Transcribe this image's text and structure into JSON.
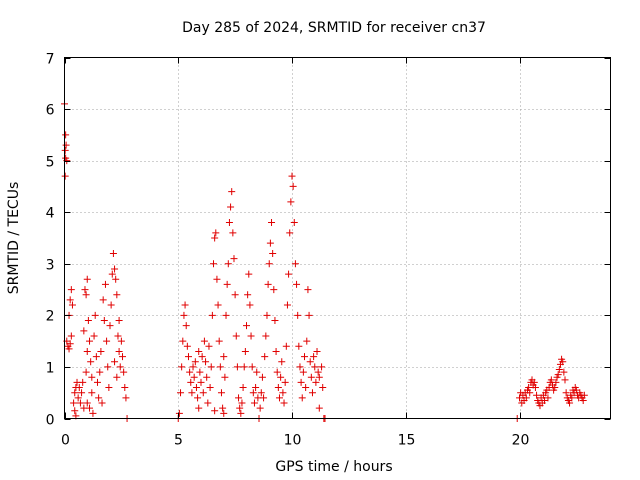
{
  "chart_data": {
    "type": "scatter",
    "title": "Day 285 of 2024, SRMTID for receiver cn37",
    "xlabel": "GPS time / hours",
    "ylabel": "SRMTID / TECUs",
    "xlim": [
      0,
      24
    ],
    "ylim": [
      0,
      7
    ],
    "xticks": [
      {
        "value": 0,
        "label": "0"
      },
      {
        "value": 5,
        "label": "5"
      },
      {
        "value": 10,
        "label": "10"
      },
      {
        "value": 15,
        "label": "15"
      },
      {
        "value": 20,
        "label": "20"
      }
    ],
    "yticks": [
      {
        "value": 0,
        "label": "0"
      },
      {
        "value": 1,
        "label": "1"
      },
      {
        "value": 2,
        "label": "2"
      },
      {
        "value": 3,
        "label": "3"
      },
      {
        "value": 4,
        "label": "4"
      },
      {
        "value": 5,
        "label": "5"
      },
      {
        "value": 6,
        "label": "6"
      },
      {
        "value": 7,
        "label": "7"
      }
    ],
    "grid": true,
    "marker": "+",
    "color": "#e00000",
    "series": [
      {
        "name": "SRMTID",
        "points": [
          [
            0.0,
            6.1
          ],
          [
            0.05,
            5.5
          ],
          [
            0.03,
            5.2
          ],
          [
            0.05,
            5.05
          ],
          [
            0.03,
            4.7
          ],
          [
            0.07,
            5.3
          ],
          [
            0.1,
            5.0
          ],
          [
            0.1,
            1.5
          ],
          [
            0.15,
            1.4
          ],
          [
            0.2,
            1.35
          ],
          [
            0.25,
            1.45
          ],
          [
            0.2,
            2.0
          ],
          [
            0.25,
            2.3
          ],
          [
            0.3,
            2.5
          ],
          [
            0.35,
            2.2
          ],
          [
            0.3,
            1.6
          ],
          [
            0.4,
            0.3
          ],
          [
            0.45,
            0.5
          ],
          [
            0.5,
            0.6
          ],
          [
            0.55,
            0.7
          ],
          [
            0.6,
            0.4
          ],
          [
            0.65,
            0.6
          ],
          [
            0.7,
            0.3
          ],
          [
            0.75,
            0.5
          ],
          [
            0.8,
            0.7
          ],
          [
            0.85,
            0.2
          ],
          [
            0.5,
            0.05
          ],
          [
            0.45,
            0.15
          ],
          [
            0.9,
            2.5
          ],
          [
            0.95,
            2.4
          ],
          [
            1.0,
            2.7
          ],
          [
            1.05,
            1.9
          ],
          [
            1.1,
            1.5
          ],
          [
            1.15,
            1.1
          ],
          [
            1.2,
            0.8
          ],
          [
            1.0,
            0.3
          ],
          [
            1.1,
            0.2
          ],
          [
            1.2,
            0.5
          ],
          [
            1.25,
            0.1
          ],
          [
            1.3,
            1.6
          ],
          [
            1.35,
            2.0
          ],
          [
            1.4,
            1.2
          ],
          [
            1.45,
            0.7
          ],
          [
            1.5,
            0.4
          ],
          [
            1.55,
            0.9
          ],
          [
            1.6,
            1.3
          ],
          [
            1.7,
            2.3
          ],
          [
            1.75,
            1.9
          ],
          [
            1.8,
            2.6
          ],
          [
            1.85,
            1.5
          ],
          [
            1.9,
            1.0
          ],
          [
            1.95,
            0.6
          ],
          [
            2.0,
            1.8
          ],
          [
            2.05,
            2.2
          ],
          [
            2.1,
            2.8
          ],
          [
            2.15,
            3.2
          ],
          [
            2.2,
            2.9
          ],
          [
            2.25,
            2.7
          ],
          [
            2.3,
            2.4
          ],
          [
            2.35,
            1.6
          ],
          [
            2.4,
            1.3
          ],
          [
            2.45,
            1.0
          ],
          [
            2.5,
            1.5
          ],
          [
            2.55,
            1.2
          ],
          [
            2.6,
            0.9
          ],
          [
            2.65,
            0.6
          ],
          [
            2.7,
            0.4
          ],
          [
            2.2,
            1.1
          ],
          [
            2.3,
            0.8
          ],
          [
            2.4,
            1.9
          ],
          [
            1.65,
            0.3
          ],
          [
            1.0,
            1.3
          ],
          [
            0.95,
            0.9
          ],
          [
            0.85,
            1.7
          ],
          [
            2.75,
            0.0
          ],
          [
            5.0,
            0.0
          ],
          [
            5.05,
            0.1
          ],
          [
            5.1,
            0.5
          ],
          [
            5.15,
            1.0
          ],
          [
            5.2,
            1.5
          ],
          [
            5.25,
            2.0
          ],
          [
            5.3,
            2.2
          ],
          [
            5.35,
            1.8
          ],
          [
            5.4,
            1.4
          ],
          [
            5.45,
            1.2
          ],
          [
            5.5,
            0.9
          ],
          [
            5.55,
            0.7
          ],
          [
            5.6,
            0.5
          ],
          [
            5.65,
            1.0
          ],
          [
            5.7,
            0.8
          ],
          [
            5.75,
            1.1
          ],
          [
            5.8,
            0.6
          ],
          [
            5.85,
            0.4
          ],
          [
            5.9,
            1.3
          ],
          [
            5.95,
            0.9
          ],
          [
            6.0,
            0.7
          ],
          [
            6.05,
            1.2
          ],
          [
            6.1,
            0.5
          ],
          [
            6.15,
            1.5
          ],
          [
            6.2,
            1.1
          ],
          [
            6.25,
            0.8
          ],
          [
            6.3,
            0.3
          ],
          [
            6.35,
            1.4
          ],
          [
            6.4,
            0.6
          ],
          [
            6.45,
            1.0
          ],
          [
            6.5,
            2.0
          ],
          [
            6.55,
            3.0
          ],
          [
            6.6,
            3.5
          ],
          [
            6.65,
            3.6
          ],
          [
            6.7,
            2.7
          ],
          [
            6.75,
            2.2
          ],
          [
            6.8,
            1.5
          ],
          [
            6.85,
            1.0
          ],
          [
            6.9,
            0.5
          ],
          [
            6.95,
            0.2
          ],
          [
            7.0,
            1.2
          ],
          [
            7.05,
            0.8
          ],
          [
            7.1,
            2.0
          ],
          [
            7.15,
            2.6
          ],
          [
            7.2,
            3.0
          ],
          [
            7.25,
            3.8
          ],
          [
            7.3,
            4.1
          ],
          [
            7.35,
            4.4
          ],
          [
            7.4,
            3.6
          ],
          [
            7.45,
            3.1
          ],
          [
            7.5,
            2.4
          ],
          [
            7.55,
            1.6
          ],
          [
            7.6,
            1.0
          ],
          [
            7.65,
            0.4
          ],
          [
            7.7,
            0.2
          ],
          [
            7.75,
            0.1
          ],
          [
            7.8,
            0.3
          ],
          [
            7.85,
            0.6
          ],
          [
            7.9,
            1.0
          ],
          [
            7.95,
            1.3
          ],
          [
            8.0,
            1.8
          ],
          [
            8.05,
            2.4
          ],
          [
            8.1,
            2.8
          ],
          [
            8.15,
            2.2
          ],
          [
            8.2,
            1.6
          ],
          [
            8.25,
            1.0
          ],
          [
            8.3,
            0.5
          ],
          [
            8.35,
            0.3
          ],
          [
            8.4,
            0.6
          ],
          [
            8.45,
            0.9
          ],
          [
            8.5,
            0.4
          ],
          [
            8.55,
            0.0
          ],
          [
            8.6,
            0.2
          ],
          [
            8.65,
            0.5
          ],
          [
            8.7,
            0.8
          ],
          [
            8.75,
            0.4
          ],
          [
            8.8,
            1.2
          ],
          [
            8.85,
            1.6
          ],
          [
            8.9,
            2.0
          ],
          [
            8.95,
            2.6
          ],
          [
            9.0,
            3.0
          ],
          [
            9.05,
            3.4
          ],
          [
            9.1,
            3.8
          ],
          [
            9.15,
            3.2
          ],
          [
            9.2,
            2.5
          ],
          [
            9.25,
            1.9
          ],
          [
            9.3,
            1.3
          ],
          [
            9.35,
            0.9
          ],
          [
            9.4,
            0.6
          ],
          [
            9.45,
            0.4
          ],
          [
            9.5,
            0.8
          ],
          [
            9.55,
            1.1
          ],
          [
            9.6,
            0.5
          ],
          [
            9.65,
            0.3
          ],
          [
            9.7,
            0.7
          ],
          [
            9.75,
            1.4
          ],
          [
            9.8,
            2.2
          ],
          [
            9.85,
            2.8
          ],
          [
            9.9,
            3.6
          ],
          [
            9.95,
            4.2
          ],
          [
            10.0,
            4.7
          ],
          [
            10.05,
            4.5
          ],
          [
            10.1,
            3.8
          ],
          [
            10.15,
            3.0
          ],
          [
            10.2,
            2.6
          ],
          [
            10.25,
            2.0
          ],
          [
            10.3,
            1.4
          ],
          [
            10.35,
            1.0
          ],
          [
            10.4,
            0.7
          ],
          [
            10.45,
            0.4
          ],
          [
            10.5,
            0.9
          ],
          [
            10.55,
            1.2
          ],
          [
            10.6,
            0.6
          ],
          [
            10.65,
            1.5
          ],
          [
            10.7,
            2.5
          ],
          [
            10.75,
            2.0
          ],
          [
            10.8,
            1.1
          ],
          [
            10.85,
            0.8
          ],
          [
            10.9,
            0.5
          ],
          [
            10.95,
            1.2
          ],
          [
            11.0,
            1.0
          ],
          [
            11.05,
            0.7
          ],
          [
            11.1,
            1.3
          ],
          [
            11.15,
            0.9
          ],
          [
            11.2,
            0.8
          ],
          [
            11.3,
            1.0
          ],
          [
            11.35,
            0.6
          ],
          [
            11.4,
            0.0
          ],
          [
            11.45,
            0.0
          ],
          [
            11.2,
            0.2
          ],
          [
            5.9,
            0.2
          ],
          [
            6.6,
            0.15
          ],
          [
            7.0,
            0.1
          ],
          [
            20.0,
            0.4
          ],
          [
            20.05,
            0.5
          ],
          [
            20.1,
            0.3
          ],
          [
            20.15,
            0.45
          ],
          [
            20.2,
            0.35
          ],
          [
            20.25,
            0.5
          ],
          [
            20.3,
            0.4
          ],
          [
            20.35,
            0.55
          ],
          [
            20.4,
            0.6
          ],
          [
            20.45,
            0.5
          ],
          [
            20.5,
            0.7
          ],
          [
            20.55,
            0.75
          ],
          [
            20.6,
            0.65
          ],
          [
            20.65,
            0.7
          ],
          [
            20.7,
            0.6
          ],
          [
            20.75,
            0.45
          ],
          [
            20.8,
            0.35
          ],
          [
            20.85,
            0.3
          ],
          [
            20.9,
            0.25
          ],
          [
            20.95,
            0.4
          ],
          [
            21.0,
            0.3
          ],
          [
            21.05,
            0.45
          ],
          [
            21.1,
            0.35
          ],
          [
            21.15,
            0.5
          ],
          [
            21.2,
            0.55
          ],
          [
            21.25,
            0.4
          ],
          [
            21.3,
            0.6
          ],
          [
            21.35,
            0.7
          ],
          [
            21.4,
            0.75
          ],
          [
            21.45,
            0.65
          ],
          [
            21.5,
            0.55
          ],
          [
            21.55,
            0.6
          ],
          [
            21.6,
            0.7
          ],
          [
            21.65,
            0.8
          ],
          [
            21.7,
            0.85
          ],
          [
            21.75,
            0.95
          ],
          [
            21.8,
            1.05
          ],
          [
            21.85,
            1.15
          ],
          [
            21.9,
            1.1
          ],
          [
            21.95,
            0.9
          ],
          [
            22.0,
            0.75
          ],
          [
            22.05,
            0.5
          ],
          [
            22.1,
            0.4
          ],
          [
            22.15,
            0.35
          ],
          [
            22.2,
            0.3
          ],
          [
            22.25,
            0.45
          ],
          [
            22.3,
            0.4
          ],
          [
            22.35,
            0.55
          ],
          [
            22.4,
            0.5
          ],
          [
            22.45,
            0.6
          ],
          [
            22.5,
            0.55
          ],
          [
            22.55,
            0.45
          ],
          [
            22.6,
            0.4
          ],
          [
            22.65,
            0.5
          ],
          [
            22.7,
            0.45
          ],
          [
            22.75,
            0.4
          ],
          [
            22.8,
            0.35
          ],
          [
            22.85,
            0.45
          ],
          [
            19.9,
            0.0
          ]
        ]
      }
    ]
  }
}
